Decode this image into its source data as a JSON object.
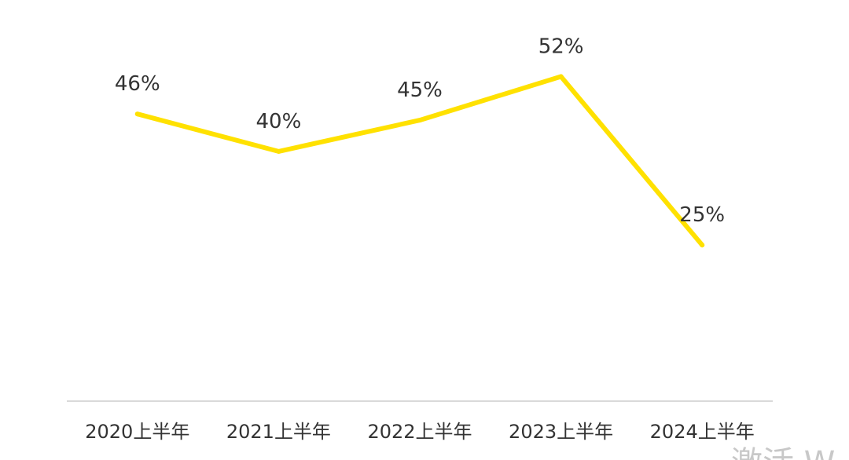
{
  "chart_data": {
    "type": "line",
    "categories": [
      "2020上半年",
      "2021上半年",
      "2022上半年",
      "2023上半年",
      "2024上半年"
    ],
    "values": [
      46,
      40,
      45,
      52,
      25
    ],
    "data_labels": [
      "46%",
      "40%",
      "45%",
      "52%",
      "25%"
    ],
    "title": "",
    "xlabel": "",
    "ylabel": "",
    "ylim": [
      0,
      63
    ],
    "grid": false,
    "legend": "none",
    "line_color": "#FFE100",
    "axis_color": "#D9D9D9"
  },
  "watermark": "激活 W"
}
